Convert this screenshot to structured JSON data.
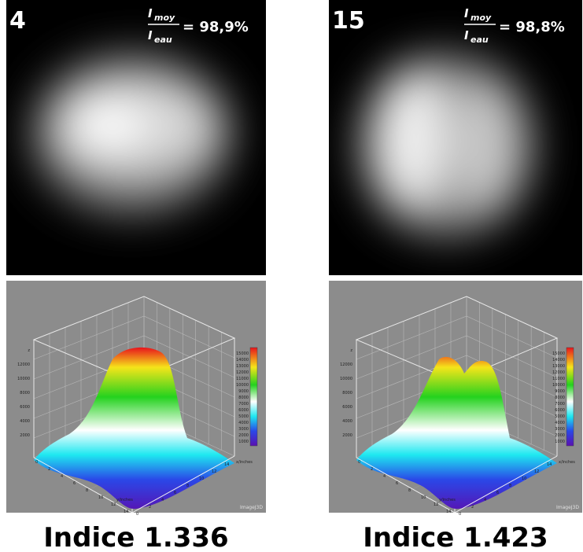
{
  "panels": [
    {
      "number": "4",
      "ratio_num": "I",
      "ratio_num_sub": "moy",
      "ratio_den": "I",
      "ratio_den_sub": "eau",
      "ratio_value": "= 98,9%",
      "caption": "Indice 1.336"
    },
    {
      "number": "15",
      "ratio_num": "I",
      "ratio_num_sub": "moy",
      "ratio_den": "I",
      "ratio_den_sub": "eau",
      "ratio_value": "= 98,8%",
      "caption": "Indice 1.423"
    }
  ],
  "plot_labels": {
    "z_axis": "z",
    "x_axis": "x/inches",
    "y_axis": "y/inches",
    "watermark": "ImageJ3D",
    "z_ticks": [
      "2000",
      "4000",
      "6000",
      "8000",
      "10000",
      "12000"
    ],
    "colorbar_ticks": [
      "15000",
      "14000",
      "13000",
      "12000",
      "11000",
      "10000",
      "9000",
      "8000",
      "7000",
      "6000",
      "5000",
      "4000",
      "3000",
      "2000",
      "1000"
    ],
    "x_ticks": [
      "0",
      "2",
      "4",
      "6",
      "8",
      "10",
      "12",
      "14"
    ],
    "y_ticks": [
      "0",
      "2",
      "4",
      "6",
      "8",
      "10",
      "12",
      "14"
    ]
  }
}
